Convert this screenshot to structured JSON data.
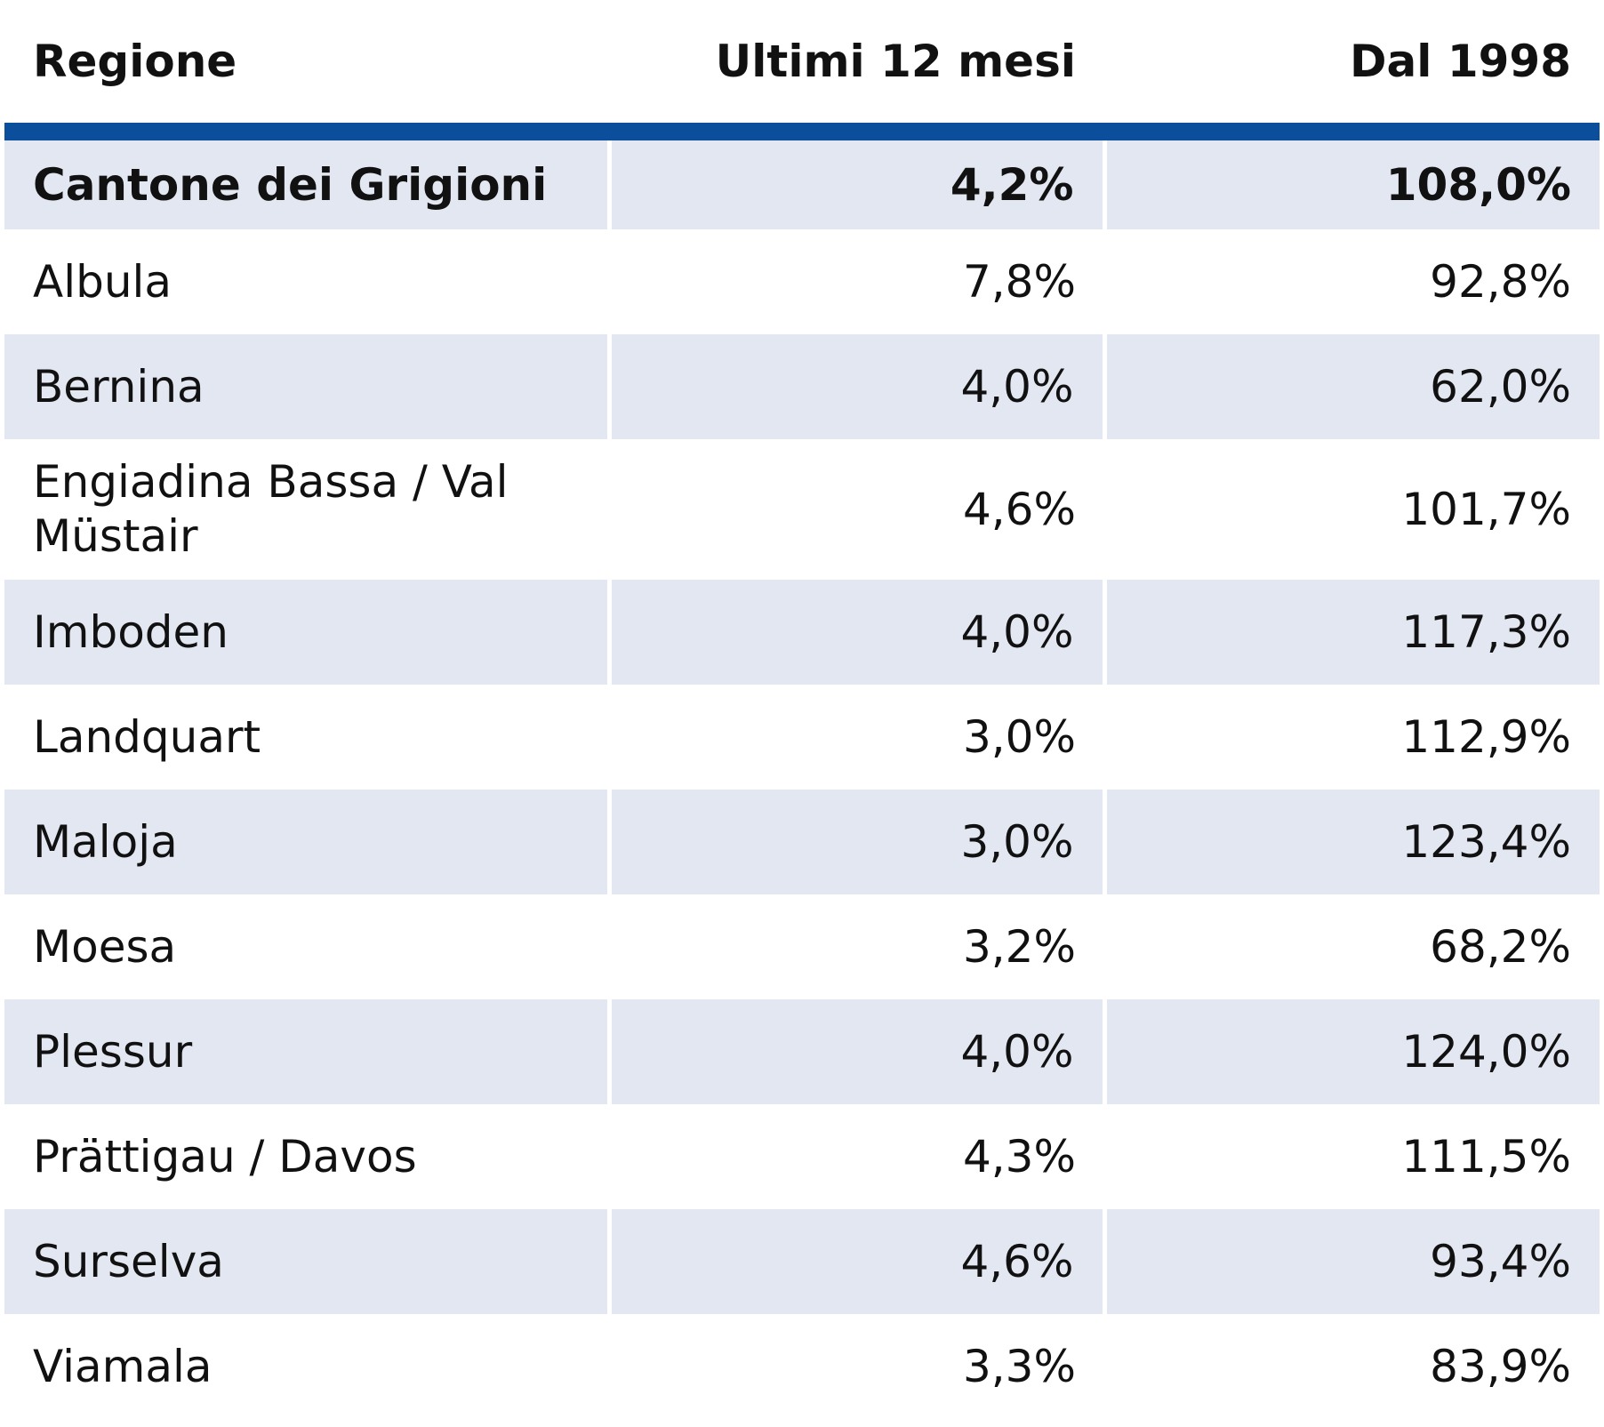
{
  "table": {
    "headers": [
      "Regione",
      "Ultimi 12 mesi",
      "Dal 1998"
    ],
    "total": {
      "regione": "Cantone dei Grigioni",
      "ultimi_12_mesi": "4,2%",
      "dal_1998": "108,0%"
    },
    "rows": [
      {
        "regione": "Albula",
        "ultimi_12_mesi": "7,8%",
        "dal_1998": "92,8%"
      },
      {
        "regione": "Bernina",
        "ultimi_12_mesi": "4,0%",
        "dal_1998": "62,0%"
      },
      {
        "regione": "Engiadina Bassa / Val Müstair",
        "ultimi_12_mesi": "4,6%",
        "dal_1998": "101,7%"
      },
      {
        "regione": "Imboden",
        "ultimi_12_mesi": "4,0%",
        "dal_1998": "117,3%"
      },
      {
        "regione": "Landquart",
        "ultimi_12_mesi": "3,0%",
        "dal_1998": "112,9%"
      },
      {
        "regione": "Maloja",
        "ultimi_12_mesi": "3,0%",
        "dal_1998": "123,4%"
      },
      {
        "regione": "Moesa",
        "ultimi_12_mesi": "3,2%",
        "dal_1998": "68,2%"
      },
      {
        "regione": "Plessur",
        "ultimi_12_mesi": "4,0%",
        "dal_1998": "124,0%"
      },
      {
        "regione": "Prättigau / Davos",
        "ultimi_12_mesi": "4,3%",
        "dal_1998": "111,5%"
      },
      {
        "regione": "Surselva",
        "ultimi_12_mesi": "4,6%",
        "dal_1998": "93,4%"
      },
      {
        "regione": "Viamala",
        "ultimi_12_mesi": "3,3%",
        "dal_1998": "83,9%"
      }
    ]
  },
  "colors": {
    "header_rule": "#0b4f9c",
    "row_shading": "#e3e7f1",
    "text": "#111111"
  }
}
